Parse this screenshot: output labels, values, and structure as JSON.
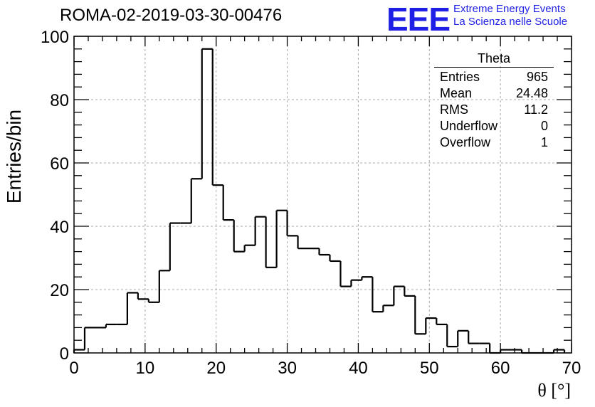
{
  "title": "ROMA-02-2019-03-30-00476",
  "logo": {
    "mark": "EEE",
    "line1": "Extreme Energy Events",
    "line2": "La Scienza nelle Scuole",
    "color": "#1f1fe6"
  },
  "stats": {
    "name": "Theta",
    "rows": [
      {
        "label": "Entries",
        "value": "965"
      },
      {
        "label": "Mean",
        "value": "24.48"
      },
      {
        "label": "RMS",
        "value": "11.2"
      },
      {
        "label": "Underflow",
        "value": "0"
      },
      {
        "label": "Overflow",
        "value": "1"
      }
    ]
  },
  "chart_data": {
    "type": "bar",
    "subtype": "histogram",
    "title": "ROMA-02-2019-03-30-00476",
    "xlabel": "θ [°]",
    "ylabel": "Entries/bin",
    "xlim": [
      0,
      70
    ],
    "ylim": [
      0,
      100
    ],
    "x_ticks": [
      0,
      10,
      20,
      30,
      40,
      50,
      60,
      70
    ],
    "y_ticks": [
      0,
      20,
      40,
      60,
      80,
      100
    ],
    "grid": true,
    "bin_width": 1.5,
    "bin_start": 0,
    "values": [
      1,
      8,
      8,
      9,
      9,
      19,
      17,
      16,
      26,
      41,
      41,
      55,
      96,
      53,
      42,
      32,
      34,
      43,
      27,
      45,
      37,
      33,
      33,
      31,
      29,
      21,
      23,
      24,
      13,
      15,
      21,
      18,
      6,
      11,
      9,
      2,
      7,
      3,
      3,
      0,
      1,
      1,
      0,
      0,
      0,
      1
    ],
    "line_color": "#000000"
  }
}
